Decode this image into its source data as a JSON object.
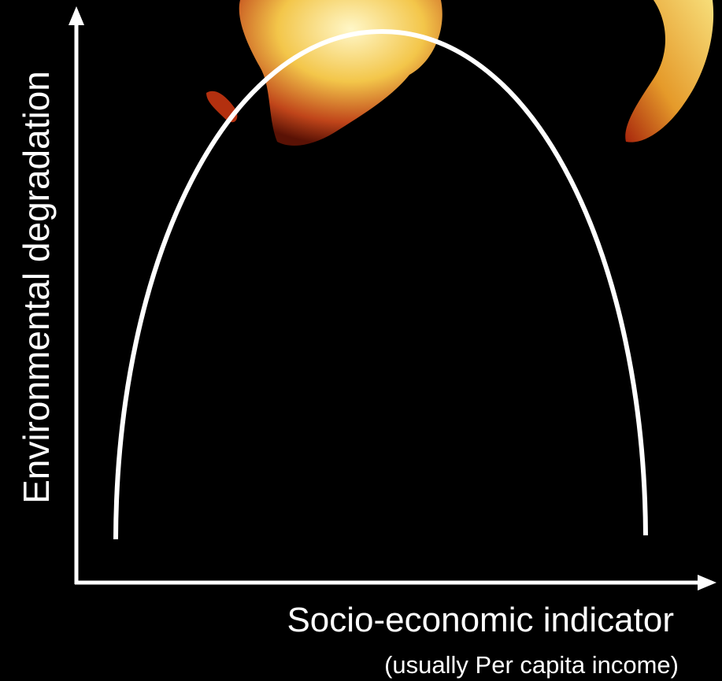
{
  "axes": {
    "y_label": "Environmental degradation",
    "x_label": "Socio-economic indicator",
    "x_sublabel": "(usually Per capita income)"
  }
}
